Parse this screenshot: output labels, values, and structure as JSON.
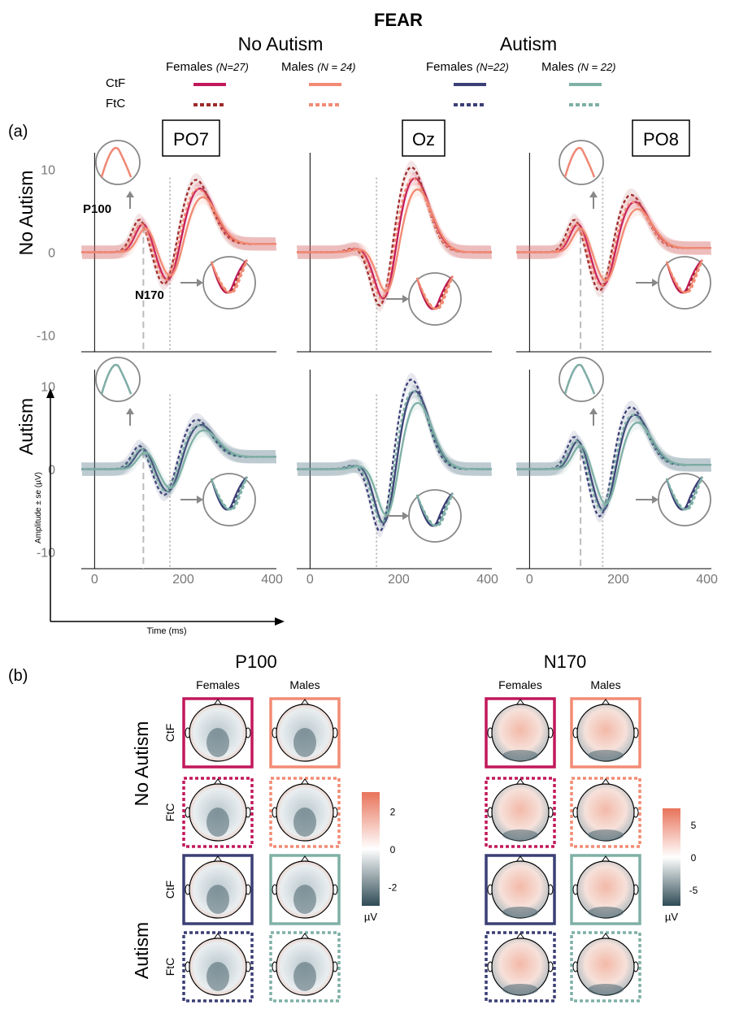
{
  "figure_title": "FEAR",
  "group_headers": [
    "No Autism",
    "Autism"
  ],
  "legend": {
    "row_labels": [
      "CtF",
      "FtC"
    ],
    "columns": [
      {
        "label": "Females",
        "n": "(N=27)",
        "color": "#c2185b",
        "ftc_color": "#9e2a2b"
      },
      {
        "label": "Males",
        "n": "(N = 24)",
        "color": "#f28b74",
        "ftc_color": "#f28b74"
      },
      {
        "label": "Females",
        "n": "(N=22)",
        "color": "#3b3f75",
        "ftc_color": "#3b3f75"
      },
      {
        "label": "Males",
        "n": "(N = 22)",
        "color": "#7fb0a6",
        "ftc_color": "#7fb0a6"
      }
    ]
  },
  "panel_a": {
    "label": "(a)",
    "electrodes": [
      "PO7",
      "Oz",
      "PO8"
    ],
    "row_labels": [
      "No Autism",
      "Autism"
    ],
    "component_labels": {
      "p100": "P100",
      "n170": "N170"
    },
    "y_axis_label": "Amplitude ± se (µV)",
    "x_axis_label": "Time (ms)"
  },
  "chart_data": {
    "type": "line",
    "x_range": [
      -30,
      410
    ],
    "ylim": [
      -12,
      12
    ],
    "x_ticks": [
      0,
      200,
      400
    ],
    "y_ticks": [
      -10,
      0,
      10
    ],
    "p100_marker_ms": [
      110,
      150,
      115
    ],
    "n170_marker_ms": [
      170,
      150,
      165
    ],
    "series_names": [
      "Females CtF",
      "Females FtC",
      "Males CtF",
      "Males FtC"
    ],
    "panels": [
      {
        "electrode": "PO7",
        "group": "No Autism",
        "p100": 3.5,
        "n170": -4.5,
        "p2": 7.5,
        "late": 1.0
      },
      {
        "electrode": "Oz",
        "group": "No Autism",
        "p100": 0.5,
        "n170": -7.0,
        "p2": 9.0,
        "late": 0.0
      },
      {
        "electrode": "PO8",
        "group": "No Autism",
        "p100": 3.5,
        "n170": -5.0,
        "p2": 6.0,
        "late": 0.5
      },
      {
        "electrode": "PO7",
        "group": "Autism",
        "p100": 2.5,
        "n170": -3.5,
        "p2": 5.0,
        "late": 1.5
      },
      {
        "electrode": "Oz",
        "group": "Autism",
        "p100": 0.5,
        "n170": -8.0,
        "p2": 9.5,
        "late": 0.0
      },
      {
        "electrode": "PO8",
        "group": "Autism",
        "p100": 3.5,
        "n170": -6.0,
        "p2": 6.5,
        "late": 0.5
      }
    ]
  },
  "panel_b": {
    "label": "(b)",
    "components": [
      "P100",
      "N170"
    ],
    "sex_labels": [
      "Females",
      "Males"
    ],
    "row_labels": [
      "CtF",
      "FtC",
      "CtF",
      "FtC"
    ],
    "group_labels": [
      "No Autism",
      "Autism"
    ],
    "colorbars": [
      {
        "ticks": [
          "2",
          "0",
          "-2"
        ],
        "unit": "µV",
        "max_color": "#e8735a",
        "mid_color": "#ffffff",
        "min_color": "#2f4b55"
      },
      {
        "ticks": [
          "5",
          "0",
          "-5"
        ],
        "unit": "µV",
        "max_color": "#e8735a",
        "mid_color": "#ffffff",
        "min_color": "#2f4b55"
      }
    ]
  }
}
